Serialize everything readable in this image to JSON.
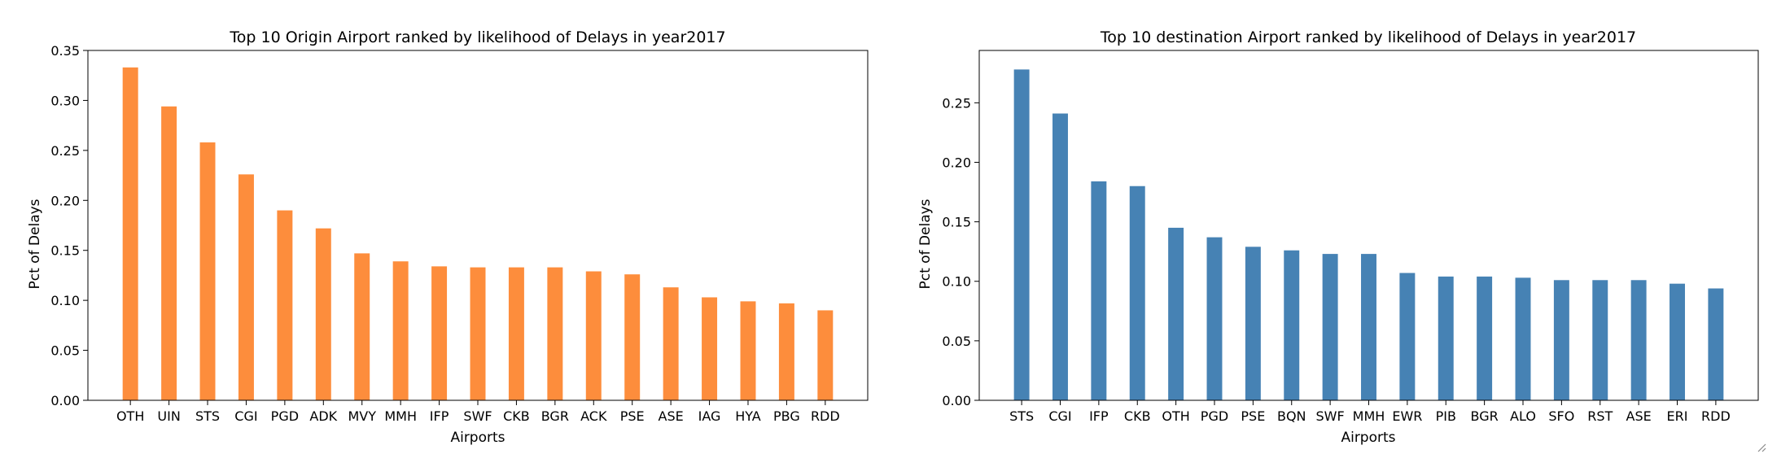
{
  "chart_data": [
    {
      "type": "bar",
      "title": "Top 10 Origin Airport ranked by likelihood of Delays in year2017",
      "xlabel": "Airports",
      "ylabel": "Pct of Delays",
      "categories": [
        "OTH",
        "UIN",
        "STS",
        "CGI",
        "PGD",
        "ADK",
        "MVY",
        "MMH",
        "IFP",
        "SWF",
        "CKB",
        "BGR",
        "ACK",
        "PSE",
        "ASE",
        "IAG",
        "HYA",
        "PBG",
        "RDD"
      ],
      "values": [
        0.333,
        0.294,
        0.258,
        0.226,
        0.19,
        0.172,
        0.147,
        0.139,
        0.134,
        0.133,
        0.133,
        0.133,
        0.129,
        0.126,
        0.113,
        0.103,
        0.099,
        0.097,
        0.09
      ],
      "ylim": [
        0,
        0.35
      ],
      "yticks": [
        "0.00",
        "0.05",
        "0.10",
        "0.15",
        "0.20",
        "0.25",
        "0.30",
        "0.35"
      ],
      "color": "#fd8d3c",
      "grid": false
    },
    {
      "type": "bar",
      "title": "Top 10 destination Airport ranked by likelihood of Delays in year2017",
      "xlabel": "Airports",
      "ylabel": "Pct of Delays",
      "categories": [
        "STS",
        "CGI",
        "IFP",
        "CKB",
        "OTH",
        "PGD",
        "PSE",
        "BQN",
        "SWF",
        "MMH",
        "EWR",
        "PIB",
        "BGR",
        "ALO",
        "SFO",
        "RST",
        "ASE",
        "ERI",
        "RDD"
      ],
      "values": [
        0.278,
        0.241,
        0.184,
        0.18,
        0.145,
        0.137,
        0.129,
        0.126,
        0.123,
        0.123,
        0.107,
        0.104,
        0.104,
        0.103,
        0.101,
        0.101,
        0.101,
        0.098,
        0.094
      ],
      "ylim": [
        0,
        0.294
      ],
      "yticks": [
        "0.00",
        "0.05",
        "0.10",
        "0.15",
        "0.20",
        "0.25"
      ],
      "color": "#4682b4",
      "grid": false
    }
  ]
}
